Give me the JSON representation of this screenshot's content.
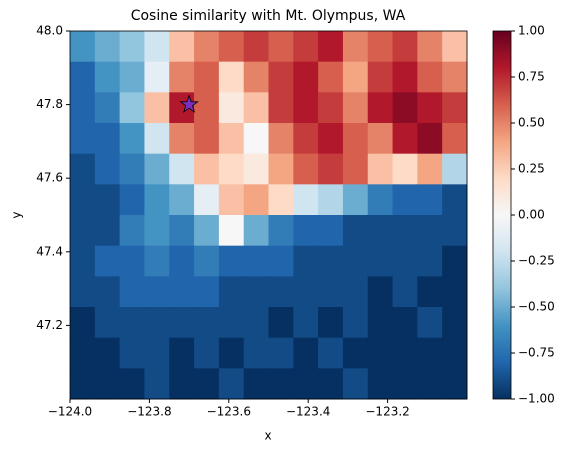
{
  "chart_data": {
    "type": "heatmap",
    "title": "Cosine similarity with Mt. Olympus, WA",
    "x_label": "x",
    "y_label": "y",
    "xlim": [
      -124.0,
      -123.0
    ],
    "ylim": [
      47.0,
      48.0
    ],
    "xticks": [
      {
        "value": -124.0,
        "label": "−124.0"
      },
      {
        "value": -123.8,
        "label": "−123.8"
      },
      {
        "value": -123.6,
        "label": "−123.6"
      },
      {
        "value": -123.4,
        "label": "−123.4"
      },
      {
        "value": -123.2,
        "label": "−123.2"
      }
    ],
    "yticks": [
      {
        "value": 47.2,
        "label": "47.2"
      },
      {
        "value": 47.4,
        "label": "47.4"
      },
      {
        "value": 47.6,
        "label": "47.6"
      },
      {
        "value": 47.8,
        "label": "47.8"
      },
      {
        "value": 48.0,
        "label": "48.0"
      }
    ],
    "colormap": "RdBu_r",
    "clim": [
      -1.0,
      1.0
    ],
    "cticks": [
      {
        "value": -1.0,
        "label": "−1.00"
      },
      {
        "value": -0.75,
        "label": "−0.75"
      },
      {
        "value": -0.5,
        "label": "−0.50"
      },
      {
        "value": -0.25,
        "label": "−0.25"
      },
      {
        "value": 0.0,
        "label": "0.00"
      },
      {
        "value": 0.25,
        "label": "0.25"
      },
      {
        "value": 0.5,
        "label": "0.50"
      },
      {
        "value": 0.75,
        "label": "0.75"
      },
      {
        "value": 1.0,
        "label": "1.00"
      }
    ],
    "marker": {
      "x": -123.7,
      "y": 47.8,
      "color": "#7b2fbf"
    },
    "z": [
      [
        -0.6,
        -0.5,
        -0.4,
        -0.2,
        0.3,
        0.5,
        0.6,
        0.7,
        0.6,
        0.7,
        0.8,
        0.5,
        0.6,
        0.7,
        0.5,
        0.3
      ],
      [
        -0.8,
        -0.6,
        -0.5,
        -0.1,
        0.5,
        0.6,
        0.2,
        0.5,
        0.7,
        0.8,
        0.6,
        0.4,
        0.7,
        0.8,
        0.6,
        0.5
      ],
      [
        -0.8,
        -0.7,
        -0.4,
        0.3,
        0.8,
        0.6,
        0.1,
        0.3,
        0.7,
        0.8,
        0.7,
        0.5,
        0.8,
        0.9,
        0.8,
        0.7
      ],
      [
        -0.8,
        -0.8,
        -0.6,
        -0.2,
        0.5,
        0.6,
        0.3,
        0.0,
        0.5,
        0.7,
        0.8,
        0.6,
        0.5,
        0.8,
        0.9,
        0.6
      ],
      [
        -0.9,
        -0.8,
        -0.7,
        -0.5,
        -0.2,
        0.3,
        0.2,
        0.1,
        0.4,
        0.6,
        0.7,
        0.6,
        0.3,
        0.2,
        0.4,
        -0.3
      ],
      [
        -0.9,
        -0.9,
        -0.8,
        -0.6,
        -0.5,
        -0.1,
        0.3,
        0.4,
        0.2,
        -0.2,
        -0.3,
        -0.5,
        -0.7,
        -0.8,
        -0.8,
        -0.9
      ],
      [
        -0.9,
        -0.9,
        -0.7,
        -0.6,
        -0.7,
        -0.5,
        0.0,
        -0.5,
        -0.7,
        -0.8,
        -0.8,
        -0.9,
        -0.9,
        -0.9,
        -0.9,
        -0.9
      ],
      [
        -0.9,
        -0.8,
        -0.8,
        -0.7,
        -0.8,
        -0.7,
        -0.8,
        -0.8,
        -0.8,
        -0.9,
        -0.9,
        -0.9,
        -0.9,
        -0.9,
        -0.9,
        -1.0
      ],
      [
        -0.9,
        -0.9,
        -0.8,
        -0.8,
        -0.8,
        -0.8,
        -0.9,
        -0.9,
        -0.9,
        -0.9,
        -0.9,
        -0.9,
        -1.0,
        -0.9,
        -1.0,
        -1.0
      ],
      [
        -1.0,
        -0.9,
        -0.9,
        -0.9,
        -0.9,
        -0.9,
        -0.9,
        -0.9,
        -1.0,
        -0.9,
        -1.0,
        -0.9,
        -1.0,
        -1.0,
        -0.9,
        -1.0
      ],
      [
        -1.0,
        -1.0,
        -0.9,
        -0.9,
        -1.0,
        -0.9,
        -1.0,
        -0.9,
        -0.9,
        -1.0,
        -0.9,
        -1.0,
        -1.0,
        -1.0,
        -1.0,
        -1.0
      ],
      [
        -1.0,
        -1.0,
        -1.0,
        -0.9,
        -1.0,
        -1.0,
        -0.9,
        -1.0,
        -1.0,
        -1.0,
        -1.0,
        -0.9,
        -1.0,
        -1.0,
        -1.0,
        -1.0
      ]
    ]
  }
}
